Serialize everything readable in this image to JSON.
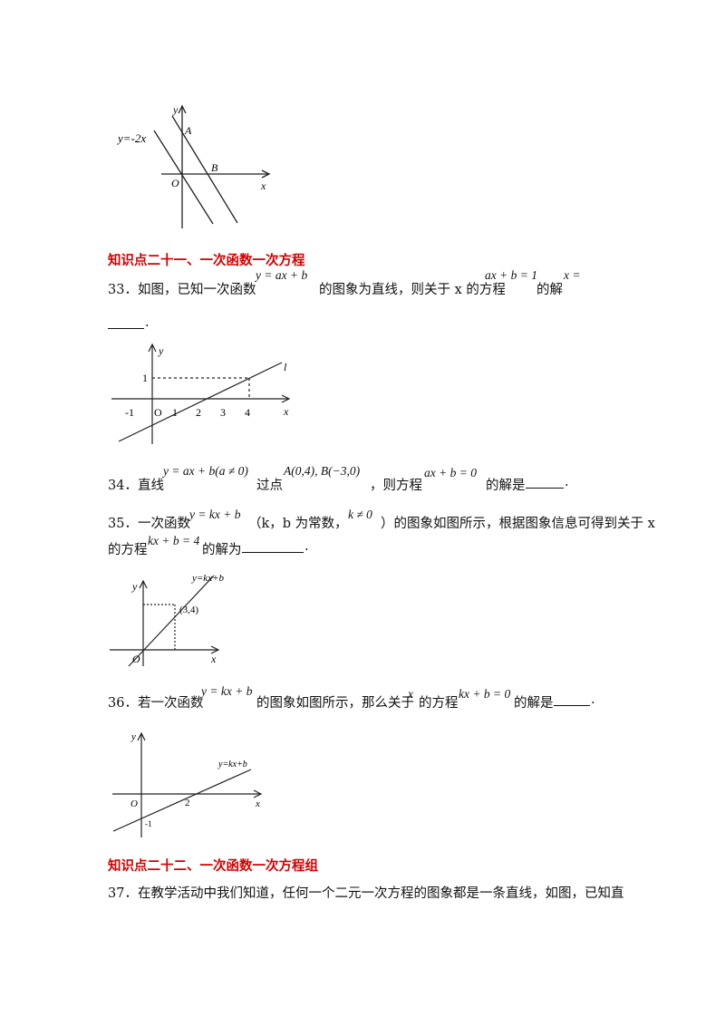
{
  "fig_top": {
    "line_label": "y=-2x",
    "label_y": "y",
    "label_A": "A",
    "label_B": "B",
    "label_O": "O",
    "label_x": "x"
  },
  "section21": {
    "title": "知识点二十一、一次函数一次方程"
  },
  "q33": {
    "text_a": "33．如图，已知一次函数",
    "math_a": "y = ax + b",
    "text_b": "的图象为直线，则关于 x 的方程",
    "math_b": "ax + b = 1",
    "text_c": "的解",
    "math_c": "x =",
    "text_end": "."
  },
  "fig33": {
    "label_y": "y",
    "label_l": "l",
    "label_one": "1",
    "label_x": "x",
    "ticks": [
      "-1",
      "O",
      "1",
      "2",
      "3",
      "4"
    ]
  },
  "q34": {
    "text_a": "34．直线",
    "math_a": "y = ax + b(a ≠ 0)",
    "text_b": "过点",
    "math_b": "A(0,4), B(−3,0)",
    "text_c": "，则方程",
    "math_c": "ax + b = 0",
    "text_d": "的解是",
    "text_end": "."
  },
  "q35": {
    "text_a": "35．一次函数",
    "math_a": "y = kx + b",
    "text_b": "（k，b 为常数，",
    "math_b": "k ≠ 0",
    "text_c": "）的图象如图所示，根据图象信息可得到关于 x",
    "text_d": "的方程",
    "math_d": "kx + b = 4",
    "text_e": "的解为",
    "text_end": "."
  },
  "fig35": {
    "label_line": "y=kx+b",
    "label_point": "(3,4)",
    "label_y": "y",
    "label_O": "O",
    "label_x": "x"
  },
  "q36": {
    "text_a": "36．若一次函数",
    "math_a": "y = kx + b",
    "text_b": "的图象如图所示，那么关于",
    "math_b": "x",
    "text_c": "的方程",
    "math_c": "kx + b = 0",
    "text_d": "的解是",
    "text_end": "."
  },
  "fig36": {
    "label_line": "y=kx+b",
    "label_y": "y",
    "label_O": "O",
    "label_two": "2",
    "label_neg1": "-1",
    "label_x": "x"
  },
  "section22": {
    "title": "知识点二十二、一次函数一次方程组"
  },
  "q37": {
    "text": "37．在教学活动中我们知道，任何一个二元一次方程的图象都是一条直线，如图，已知直"
  }
}
